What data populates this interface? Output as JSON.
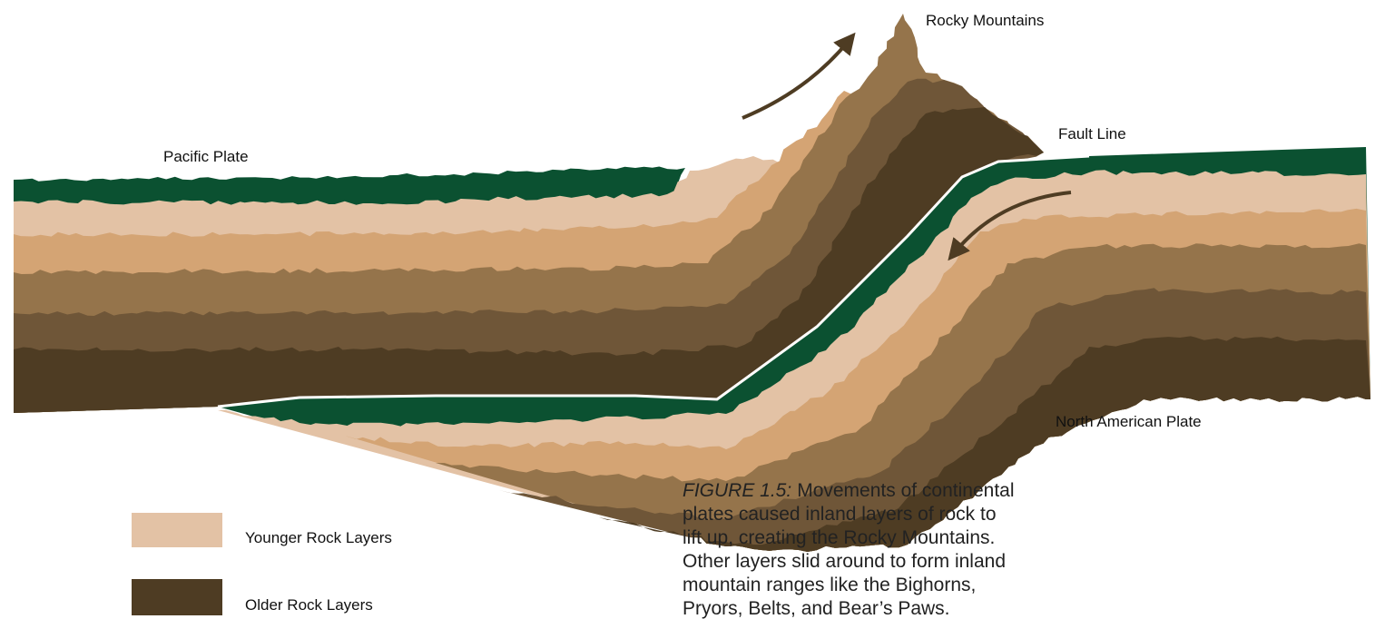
{
  "labels": {
    "rocky_mountains": "Rocky Mountains",
    "pacific_plate": "Pacific Plate",
    "fault_line": "Fault Line",
    "north_american_plate": "North American Plate"
  },
  "legend": [
    {
      "label": "Younger Rock Layers"
    },
    {
      "label": "Older Rock Layers"
    }
  ],
  "caption": {
    "label": "FIGURE 1.5:",
    "lines": [
      "Movements of continental",
      "plates caused inland layers of rock to",
      "lift up, creating the Rocky Mountains.",
      "Other layers slid around to form inland",
      "mountain ranges like the Bighorns,",
      "Pryors, Belts, and Bear’s Paws."
    ]
  }
}
